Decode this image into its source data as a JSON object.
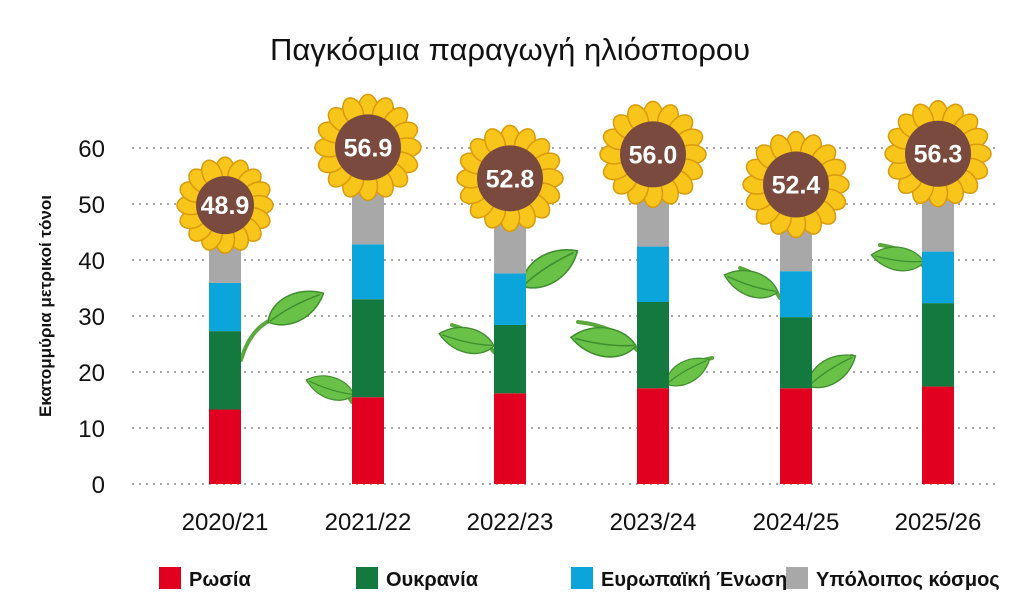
{
  "chart_data": {
    "type": "bar",
    "stacked": true,
    "title": "Παγκόσμια παραγωγή ηλιόσπορου",
    "ylabel": "Εκατομμύρια μετρικοί τόνοι",
    "xlabel": "",
    "ylim": [
      0,
      60
    ],
    "yticks": [
      0,
      10,
      20,
      30,
      40,
      50,
      60
    ],
    "grid": true,
    "legend_position": "bottom",
    "categories": [
      "2020/21",
      "2021/22",
      "2022/23",
      "2023/24",
      "2024/25",
      "2025/26"
    ],
    "series": [
      {
        "name": "Ρωσία",
        "color": "#e1001f",
        "values": [
          13.3,
          15.5,
          16.2,
          17.1,
          17.1,
          17.4
        ]
      },
      {
        "name": "Ουκρανία",
        "color": "#13793e",
        "values": [
          14.0,
          17.5,
          12.2,
          15.4,
          12.7,
          14.9
        ]
      },
      {
        "name": "Ευρωπαϊκή Ένωση",
        "color": "#0ba5dc",
        "values": [
          8.6,
          9.8,
          9.2,
          9.9,
          8.2,
          9.2
        ]
      },
      {
        "name": "Υπόλοιπος κόσμος",
        "color": "#a8a8a8",
        "values": [
          13.0,
          14.1,
          15.2,
          13.6,
          14.4,
          14.8
        ]
      }
    ],
    "totals": [
      "48.9",
      "56.9",
      "52.8",
      "56.0",
      "52.4",
      "56.3"
    ]
  }
}
